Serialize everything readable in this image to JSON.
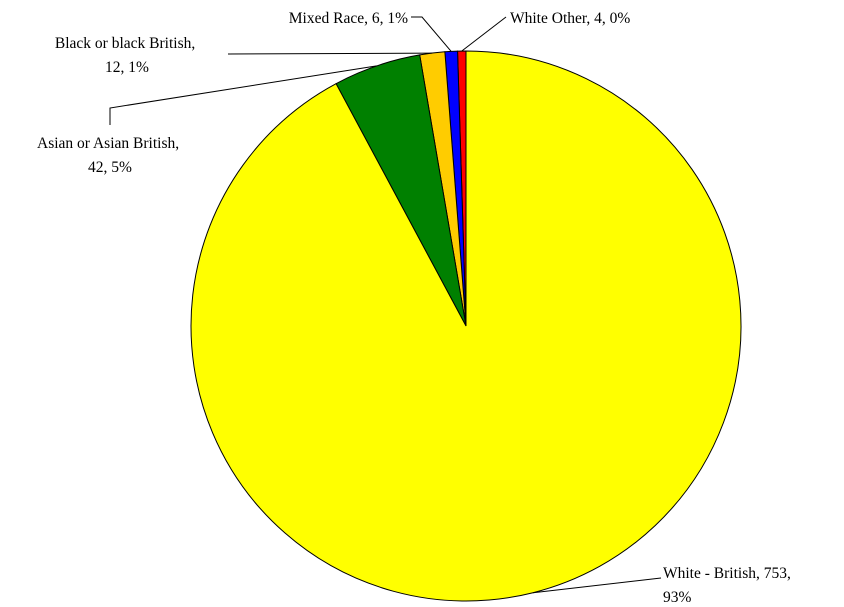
{
  "chart_data": {
    "type": "pie",
    "title": "",
    "start_angle_deg": 0,
    "direction": "counterclockwise",
    "slices": [
      {
        "name": "White Other",
        "value": 4,
        "percent": "0%",
        "color": "#FF0000",
        "label": "White Other, 4, 0%"
      },
      {
        "name": "Mixed Race",
        "value": 6,
        "percent": "1%",
        "color": "#0000FF",
        "label": "Mixed Race, 6, 1%"
      },
      {
        "name": "Black or black British",
        "value": 12,
        "percent": "1%",
        "color": "#FFCC00",
        "label_lines": [
          "Black or black British,",
          "12, 1%"
        ]
      },
      {
        "name": "Asian or Asian British",
        "value": 42,
        "percent": "5%",
        "color": "#008000",
        "label_lines": [
          "Asian or Asian British,",
          "42, 5%"
        ]
      },
      {
        "name": "White - British",
        "value": 753,
        "percent": "93%",
        "color": "#FFFF00",
        "label_lines": [
          "White - British, 753,",
          "93%"
        ]
      }
    ]
  }
}
